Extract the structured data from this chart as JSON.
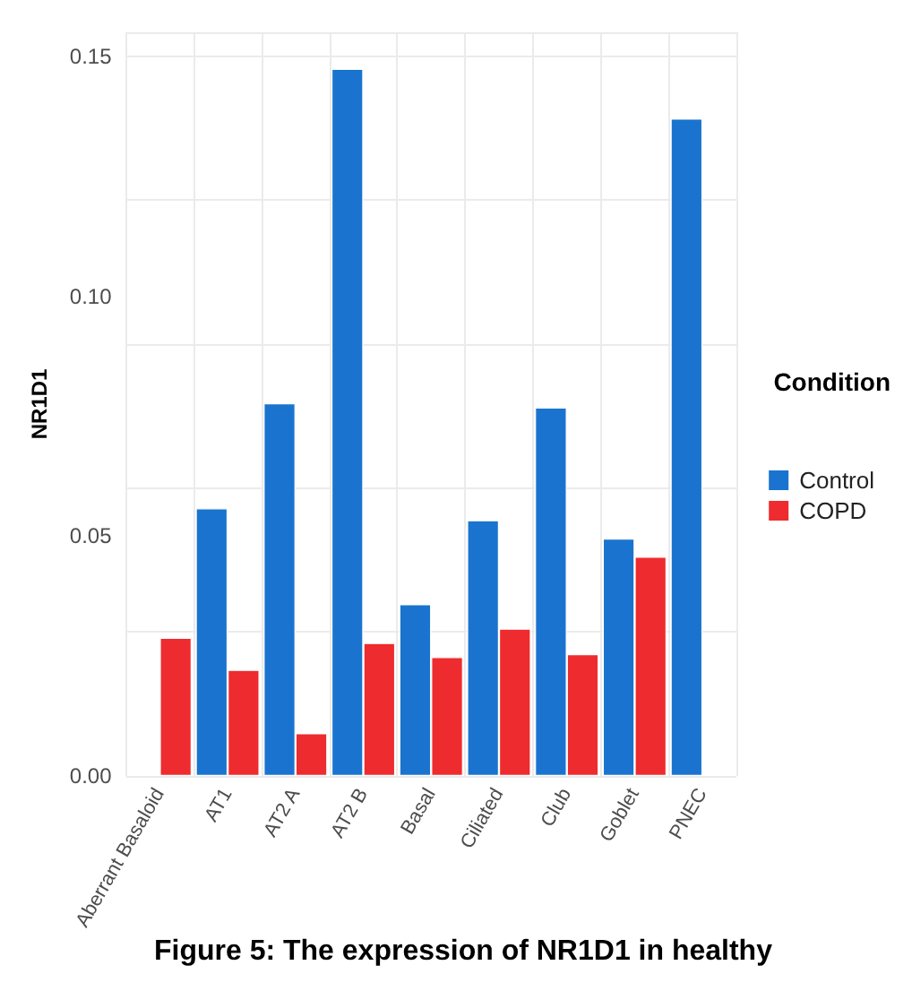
{
  "chart_data": {
    "type": "bar",
    "ylabel": "NR1D1",
    "legend_title": "Condition",
    "legend": "right",
    "grid": true,
    "categories": [
      "Aberrant Basaloid",
      "AT1",
      "AT2 A",
      "AT2 B",
      "Basal",
      "Ciliated",
      "Club",
      "Goblet",
      "PNEC"
    ],
    "series": [
      {
        "name": "Control",
        "color": "#1a74cf",
        "values": [
          null,
          0.0558,
          0.0777,
          0.1474,
          0.0358,
          0.0533,
          0.0768,
          0.0495,
          0.137
        ]
      },
      {
        "name": "COPD",
        "color": "#ee2b2e",
        "values": [
          0.0288,
          0.0221,
          0.0089,
          0.0277,
          0.0248,
          0.0307,
          0.0254,
          0.0457,
          null
        ]
      }
    ],
    "ylim": [
      0,
      0.155
    ],
    "yticks": [
      {
        "value": 0,
        "label": "0.00"
      },
      {
        "value": 0.05,
        "label": "0.05"
      },
      {
        "value": 0.1,
        "label": "0.10"
      },
      {
        "value": 0.15,
        "label": "0.15"
      }
    ],
    "annotations": [
      "Figure 5: The expression of NR1D1 in healthy"
    ]
  }
}
